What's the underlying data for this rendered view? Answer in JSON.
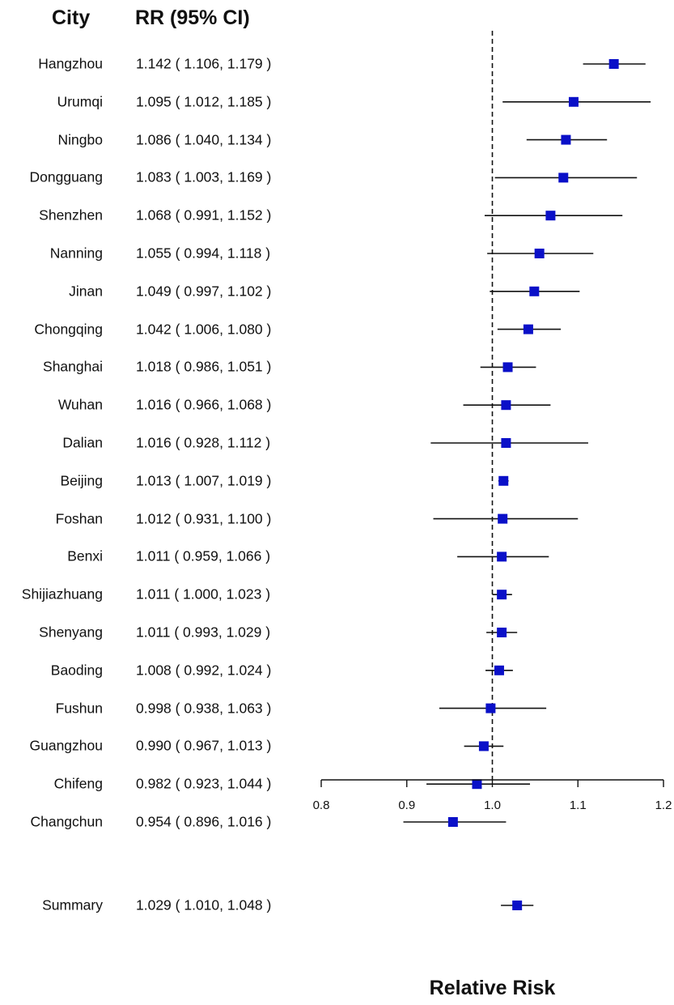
{
  "chart_data": {
    "type": "forest",
    "column_headers": {
      "city": "City",
      "rr": "RR (95% CI)"
    },
    "xlabel": "Relative Risk",
    "xlim": [
      0.8,
      1.2
    ],
    "x_ticks": [
      "0.8",
      "0.9",
      "1.0",
      "1.1",
      "1.2"
    ],
    "reference_line": 1.0,
    "marker_color": "#0a10c8",
    "rows": [
      {
        "city": "Hangzhou",
        "rr": 1.142,
        "lo": 1.106,
        "hi": 1.179,
        "label": "1.142 ( 1.106, 1.179 )"
      },
      {
        "city": "Urumqi",
        "rr": 1.095,
        "lo": 1.012,
        "hi": 1.185,
        "label": "1.095 ( 1.012, 1.185 )"
      },
      {
        "city": "Ningbo",
        "rr": 1.086,
        "lo": 1.04,
        "hi": 1.134,
        "label": "1.086 ( 1.040, 1.134 )"
      },
      {
        "city": "Dongguang",
        "rr": 1.083,
        "lo": 1.003,
        "hi": 1.169,
        "label": "1.083 ( 1.003, 1.169 )"
      },
      {
        "city": "Shenzhen",
        "rr": 1.068,
        "lo": 0.991,
        "hi": 1.152,
        "label": "1.068 ( 0.991, 1.152 )"
      },
      {
        "city": "Nanning",
        "rr": 1.055,
        "lo": 0.994,
        "hi": 1.118,
        "label": "1.055 ( 0.994, 1.118 )"
      },
      {
        "city": "Jinan",
        "rr": 1.049,
        "lo": 0.997,
        "hi": 1.102,
        "label": "1.049 ( 0.997, 1.102 )"
      },
      {
        "city": "Chongqing",
        "rr": 1.042,
        "lo": 1.006,
        "hi": 1.08,
        "label": "1.042 ( 1.006, 1.080 )"
      },
      {
        "city": "Shanghai",
        "rr": 1.018,
        "lo": 0.986,
        "hi": 1.051,
        "label": "1.018 ( 0.986, 1.051 )"
      },
      {
        "city": "Wuhan",
        "rr": 1.016,
        "lo": 0.966,
        "hi": 1.068,
        "label": "1.016 ( 0.966, 1.068 )"
      },
      {
        "city": "Dalian",
        "rr": 1.016,
        "lo": 0.928,
        "hi": 1.112,
        "label": "1.016 ( 0.928, 1.112 )"
      },
      {
        "city": "Beijing",
        "rr": 1.013,
        "lo": 1.007,
        "hi": 1.019,
        "label": "1.013 ( 1.007, 1.019 )"
      },
      {
        "city": "Foshan",
        "rr": 1.012,
        "lo": 0.931,
        "hi": 1.1,
        "label": "1.012 ( 0.931, 1.100 )"
      },
      {
        "city": "Benxi",
        "rr": 1.011,
        "lo": 0.959,
        "hi": 1.066,
        "label": "1.011 ( 0.959, 1.066 )"
      },
      {
        "city": "Shijiazhuang",
        "rr": 1.011,
        "lo": 1.0,
        "hi": 1.023,
        "label": "1.011 ( 1.000, 1.023 )"
      },
      {
        "city": "Shenyang",
        "rr": 1.011,
        "lo": 0.993,
        "hi": 1.029,
        "label": "1.011 ( 0.993, 1.029 )"
      },
      {
        "city": "Baoding",
        "rr": 1.008,
        "lo": 0.992,
        "hi": 1.024,
        "label": "1.008 ( 0.992, 1.024 )"
      },
      {
        "city": "Fushun",
        "rr": 0.998,
        "lo": 0.938,
        "hi": 1.063,
        "label": "0.998 ( 0.938, 1.063 )"
      },
      {
        "city": "Guangzhou",
        "rr": 0.99,
        "lo": 0.967,
        "hi": 1.013,
        "label": "0.990 ( 0.967, 1.013 )"
      },
      {
        "city": "Chifeng",
        "rr": 0.982,
        "lo": 0.923,
        "hi": 1.044,
        "label": "0.982 ( 0.923, 1.044 )"
      },
      {
        "city": "Changchun",
        "rr": 0.954,
        "lo": 0.896,
        "hi": 1.016,
        "label": "0.954 ( 0.896, 1.016 )"
      }
    ],
    "summary": {
      "city": "Summary",
      "rr": 1.029,
      "lo": 1.01,
      "hi": 1.048,
      "label": "1.029 ( 1.010, 1.048 )"
    }
  }
}
